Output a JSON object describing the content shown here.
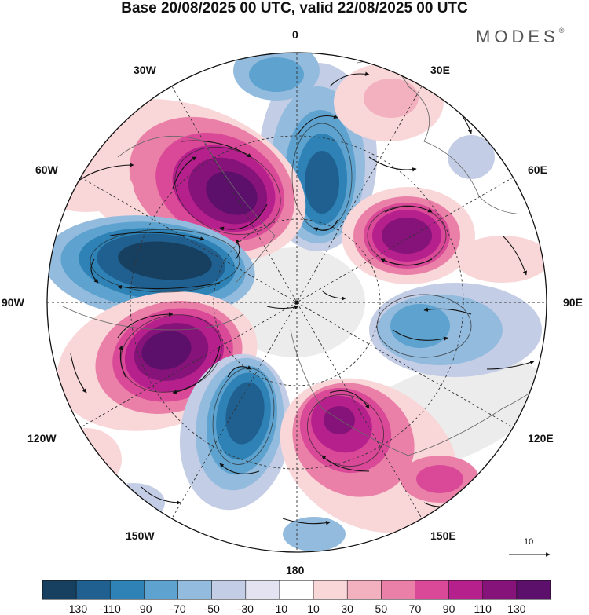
{
  "title": "Base 20/08/2025 00 UTC, valid 22/08/2025 00 UTC",
  "brand": {
    "name": "MODES",
    "mark": "®"
  },
  "longitude_labels": {
    "top": "0",
    "bottom": "180",
    "left": "90W",
    "right": "90E",
    "nw30": "30W",
    "nw60": "60W",
    "ne30": "30E",
    "ne60": "60E",
    "sw120": "120W",
    "sw150": "150W",
    "se120": "120E",
    "se150": "150E"
  },
  "vector_reference": {
    "label": "10"
  },
  "colorbar": {
    "colors": [
      "#173f5f",
      "#1f6090",
      "#2e82b5",
      "#5ea3cf",
      "#93bbdd",
      "#c4cde6",
      "#e4e3f1",
      "#ffffff",
      "#f9d6d8",
      "#f3b0bf",
      "#ea80a8",
      "#d94998",
      "#b5208c",
      "#851379",
      "#5c0f6b"
    ],
    "labels": [
      "-130",
      "-110",
      "-90",
      "-70",
      "-50",
      "-30",
      "-10",
      "10",
      "30",
      "50",
      "70",
      "90",
      "110",
      "130"
    ]
  },
  "anomaly_cells": [
    {
      "name": "blue-cell-north",
      "value": -110
    },
    {
      "name": "purple-cell-northwest",
      "value": 120
    },
    {
      "name": "blue-cell-west",
      "value": -125
    },
    {
      "name": "purple-cell-southwest",
      "value": 115
    },
    {
      "name": "blue-cell-south",
      "value": -95
    },
    {
      "name": "magenta-cell-southeast",
      "value": 95
    },
    {
      "name": "purple-cell-east",
      "value": 115
    },
    {
      "name": "blue-cell-east",
      "value": -60
    }
  ]
}
